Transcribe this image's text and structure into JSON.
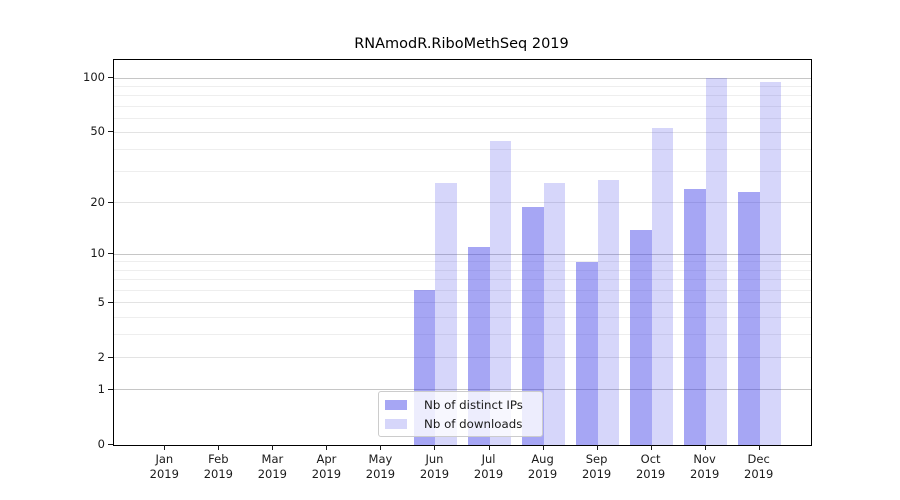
{
  "chart_data": {
    "type": "bar",
    "title": "RNAmodR.RiboMethSeq 2019",
    "categories": [
      "Jan",
      "Feb",
      "Mar",
      "Apr",
      "May",
      "Jun",
      "Jul",
      "Aug",
      "Sep",
      "Oct",
      "Nov",
      "Dec"
    ],
    "x_year_label": "2019",
    "series": [
      {
        "name": "Nb of distinct IPs",
        "color": "rgba(60,60,230,0.46)",
        "values": [
          0,
          0,
          0,
          0,
          0,
          6,
          11,
          19,
          9,
          14,
          24,
          23
        ]
      },
      {
        "name": "Nb of downloads",
        "color": "rgba(60,60,230,0.21)",
        "values": [
          0,
          0,
          0,
          0,
          0,
          26,
          45,
          26,
          27,
          53,
          100,
          95
        ]
      }
    ],
    "yscale": "log1p",
    "ylim": [
      0,
      100
    ],
    "y_ticks": [
      0,
      1,
      2,
      5,
      10,
      20,
      50,
      100
    ],
    "y_gridlines_major": [
      1,
      10,
      100
    ],
    "y_gridlines_mid": [
      2,
      5,
      20,
      50
    ],
    "y_gridlines_minor": [
      3,
      4,
      6,
      7,
      8,
      9,
      30,
      40,
      60,
      70,
      80,
      90
    ],
    "grid_color_major": "#c6c6c6",
    "grid_color_mid": "#e3e3e3",
    "grid_color_minor": "#eeeeee",
    "legend_position": "bottom-center",
    "xlabel": "",
    "ylabel": ""
  }
}
